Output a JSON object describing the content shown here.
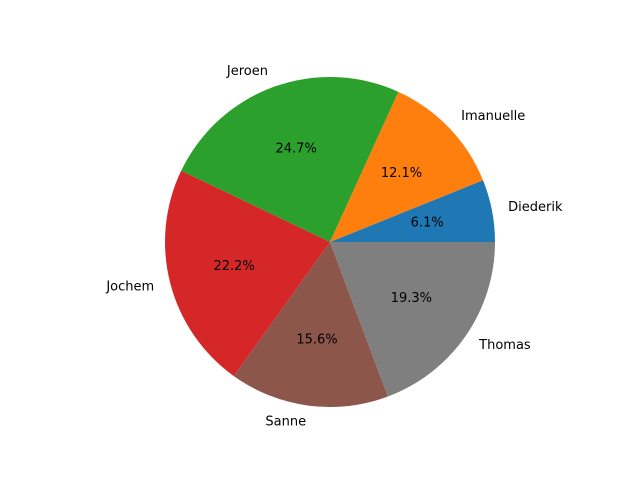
{
  "chart_data": {
    "type": "pie",
    "title": "",
    "labels": [
      "Diederik",
      "Imanuelle",
      "Jeroen",
      "Jochem",
      "Sanne",
      "Thomas"
    ],
    "values": [
      6.1,
      12.1,
      24.7,
      22.2,
      15.6,
      19.3
    ],
    "value_labels": [
      "6.1%",
      "12.1%",
      "24.7%",
      "22.2%",
      "15.6%",
      "19.3%"
    ],
    "colors": [
      "#1f77b4",
      "#ff7f0e",
      "#2ca02c",
      "#d62728",
      "#8c564b",
      "#7f7f7f"
    ],
    "start_angle_deg": 0,
    "direction": "counterclockwise",
    "legend": "none"
  }
}
